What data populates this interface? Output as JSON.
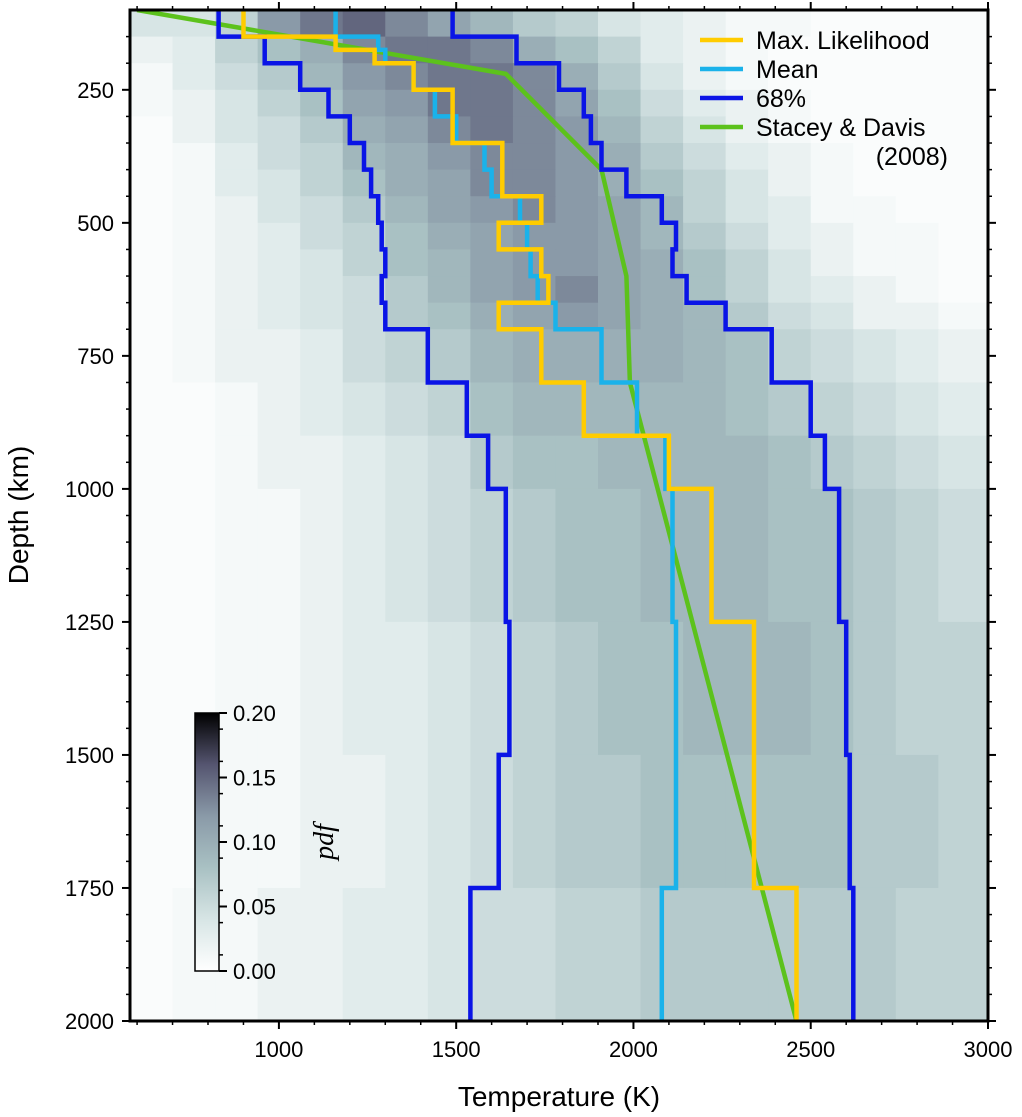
{
  "chart_data": {
    "type": "heatmap",
    "xlabel": "Temperature (K)",
    "ylabel": "Depth (km)",
    "xlim": [
      580,
      3000
    ],
    "ylim": [
      2000,
      100
    ],
    "x_ticks": [
      1000,
      1500,
      2000,
      2500,
      3000
    ],
    "y_ticks": [
      250,
      500,
      750,
      1000,
      1250,
      1500,
      1750,
      2000
    ],
    "x_tick_labels": [
      "1000",
      "1500",
      "2000",
      "2500",
      "3000"
    ],
    "y_tick_labels": [
      "250",
      "500",
      "750",
      "1000",
      "1250",
      "1500",
      "1750",
      "2000"
    ],
    "legend_position": "top-right",
    "legend": [
      {
        "label": "Max. Likelihood",
        "color": "#ffcc00"
      },
      {
        "label": "Mean",
        "color": "#1ab2ea"
      },
      {
        "label": "68%",
        "color": "#0a14e6"
      },
      {
        "label": "Stacey & Davis",
        "label2": "(2008)",
        "color": "#5cc21c"
      }
    ],
    "colorbar": {
      "title": "pdf",
      "range": [
        0,
        0.2
      ],
      "tick_labels": [
        "0.00",
        "0.05",
        "0.10",
        "0.15",
        "0.20"
      ],
      "colors": [
        "#ffffff",
        "#d7e5e5",
        "#a9c1c3",
        "#8a9aa8",
        "#555570",
        "#000000"
      ]
    },
    "depth_bins": [
      100,
      150,
      200,
      250,
      300,
      350,
      400,
      450,
      500,
      550,
      600,
      650,
      700,
      800,
      900,
      1000,
      1250,
      1500,
      1750,
      2000
    ],
    "temperature_bins": [
      580,
      700,
      820,
      940,
      1060,
      1180,
      1300,
      1420,
      1540,
      1660,
      1780,
      1900,
      2020,
      2140,
      2260,
      2380,
      2500,
      2620,
      2740,
      2860,
      3000
    ],
    "pdf_rows": [
      [
        0.04,
        0.04,
        0.06,
        0.12,
        0.14,
        0.15,
        0.13,
        0.11,
        0.09,
        0.07,
        0.06,
        0.04,
        0.03,
        0.02,
        0.01,
        0.01,
        0.005,
        0.005,
        0.005,
        0.005
      ],
      [
        0.02,
        0.03,
        0.06,
        0.08,
        0.1,
        0.13,
        0.14,
        0.14,
        0.13,
        0.1,
        0.08,
        0.06,
        0.03,
        0.02,
        0.01,
        0.005,
        0.005,
        0.005,
        0.005,
        0.005
      ],
      [
        0.01,
        0.03,
        0.05,
        0.07,
        0.09,
        0.12,
        0.13,
        0.14,
        0.14,
        0.13,
        0.1,
        0.07,
        0.04,
        0.02,
        0.01,
        0.005,
        0.005,
        0.005,
        0.005,
        0.005
      ],
      [
        0.01,
        0.02,
        0.04,
        0.06,
        0.08,
        0.11,
        0.12,
        0.14,
        0.14,
        0.13,
        0.11,
        0.08,
        0.05,
        0.03,
        0.02,
        0.01,
        0.005,
        0.005,
        0.005,
        0.005
      ],
      [
        0.005,
        0.02,
        0.04,
        0.05,
        0.07,
        0.1,
        0.11,
        0.13,
        0.14,
        0.13,
        0.12,
        0.09,
        0.06,
        0.04,
        0.02,
        0.01,
        0.005,
        0.005,
        0.005,
        0.005
      ],
      [
        0.005,
        0.01,
        0.03,
        0.05,
        0.06,
        0.09,
        0.1,
        0.12,
        0.13,
        0.13,
        0.12,
        0.1,
        0.07,
        0.05,
        0.03,
        0.02,
        0.01,
        0.005,
        0.005,
        0.005
      ],
      [
        0.005,
        0.01,
        0.03,
        0.04,
        0.06,
        0.08,
        0.1,
        0.11,
        0.13,
        0.13,
        0.12,
        0.1,
        0.08,
        0.06,
        0.04,
        0.02,
        0.01,
        0.005,
        0.005,
        0.005
      ],
      [
        0.005,
        0.01,
        0.02,
        0.04,
        0.05,
        0.07,
        0.09,
        0.11,
        0.12,
        0.13,
        0.12,
        0.11,
        0.09,
        0.06,
        0.04,
        0.03,
        0.01,
        0.01,
        0.005,
        0.005
      ],
      [
        0.005,
        0.01,
        0.02,
        0.03,
        0.05,
        0.06,
        0.08,
        0.1,
        0.11,
        0.12,
        0.12,
        0.11,
        0.09,
        0.07,
        0.05,
        0.03,
        0.02,
        0.01,
        0.01,
        0.005
      ],
      [
        0.005,
        0.01,
        0.02,
        0.03,
        0.04,
        0.06,
        0.08,
        0.09,
        0.11,
        0.12,
        0.12,
        0.11,
        0.1,
        0.08,
        0.06,
        0.04,
        0.02,
        0.01,
        0.01,
        0.005
      ],
      [
        0.005,
        0.01,
        0.02,
        0.03,
        0.04,
        0.05,
        0.07,
        0.09,
        0.11,
        0.12,
        0.13,
        0.11,
        0.1,
        0.08,
        0.06,
        0.04,
        0.03,
        0.02,
        0.01,
        0.005
      ],
      [
        0.005,
        0.01,
        0.02,
        0.03,
        0.04,
        0.05,
        0.07,
        0.08,
        0.1,
        0.11,
        0.12,
        0.11,
        0.1,
        0.09,
        0.07,
        0.05,
        0.04,
        0.02,
        0.02,
        0.01
      ],
      [
        0.005,
        0.01,
        0.02,
        0.02,
        0.03,
        0.05,
        0.06,
        0.07,
        0.09,
        0.1,
        0.1,
        0.1,
        0.1,
        0.09,
        0.08,
        0.06,
        0.05,
        0.04,
        0.03,
        0.02
      ],
      [
        0.005,
        0.005,
        0.01,
        0.02,
        0.03,
        0.04,
        0.05,
        0.06,
        0.08,
        0.09,
        0.09,
        0.09,
        0.09,
        0.09,
        0.08,
        0.07,
        0.06,
        0.05,
        0.04,
        0.03
      ],
      [
        0.005,
        0.005,
        0.01,
        0.02,
        0.02,
        0.03,
        0.04,
        0.05,
        0.07,
        0.08,
        0.08,
        0.09,
        0.09,
        0.09,
        0.09,
        0.08,
        0.07,
        0.06,
        0.05,
        0.04
      ],
      [
        0.005,
        0.005,
        0.01,
        0.01,
        0.02,
        0.03,
        0.04,
        0.05,
        0.06,
        0.07,
        0.08,
        0.08,
        0.09,
        0.09,
        0.09,
        0.08,
        0.08,
        0.07,
        0.06,
        0.05
      ],
      [
        0.005,
        0.005,
        0.01,
        0.01,
        0.02,
        0.03,
        0.03,
        0.04,
        0.05,
        0.06,
        0.07,
        0.08,
        0.08,
        0.09,
        0.09,
        0.09,
        0.08,
        0.07,
        0.06,
        0.06
      ],
      [
        0.005,
        0.005,
        0.01,
        0.01,
        0.02,
        0.02,
        0.03,
        0.04,
        0.05,
        0.06,
        0.07,
        0.07,
        0.08,
        0.08,
        0.08,
        0.08,
        0.08,
        0.07,
        0.07,
        0.06
      ],
      [
        0.005,
        0.01,
        0.01,
        0.02,
        0.02,
        0.03,
        0.03,
        0.04,
        0.05,
        0.05,
        0.06,
        0.06,
        0.07,
        0.07,
        0.07,
        0.07,
        0.07,
        0.07,
        0.06,
        0.06
      ]
    ],
    "series": [
      {
        "name": "Max. Likelihood",
        "type": "step",
        "depth": [
          100,
          150,
          175,
          200,
          250,
          350,
          450,
          500,
          550,
          600,
          650,
          700,
          800,
          900,
          1000,
          1250,
          1750,
          2000
        ],
        "temperature": [
          900,
          1160,
          1270,
          1380,
          1490,
          1630,
          1740,
          1620,
          1740,
          1760,
          1620,
          1740,
          1860,
          2100,
          2220,
          2340,
          2460,
          2460
        ]
      },
      {
        "name": "Mean",
        "type": "step",
        "depth": [
          100,
          150,
          175,
          200,
          250,
          300,
          350,
          400,
          450,
          500,
          550,
          600,
          650,
          700,
          800,
          900,
          1000,
          1250,
          1750,
          2000
        ],
        "temperature": [
          1160,
          1280,
          1300,
          1380,
          1440,
          1500,
          1580,
          1600,
          1680,
          1700,
          1710,
          1730,
          1780,
          1910,
          2010,
          2090,
          2110,
          2120,
          2080,
          2080
        ]
      },
      {
        "name": "68%",
        "type": "step",
        "depth": [
          100,
          150,
          200,
          250,
          300,
          350,
          400,
          450,
          500,
          550,
          600,
          650,
          700,
          800,
          900,
          1000,
          1250,
          1500,
          1750,
          2000
        ],
        "temperature": [
          830,
          960,
          1060,
          1140,
          1200,
          1240,
          1260,
          1280,
          1290,
          1300,
          1290,
          1300,
          1420,
          1530,
          1590,
          1640,
          1650,
          1620,
          1540,
          1540
        ]
      },
      {
        "name": "68%",
        "type": "step",
        "depth": [
          100,
          150,
          200,
          250,
          300,
          350,
          400,
          450,
          500,
          550,
          600,
          650,
          700,
          800,
          900,
          1000,
          1250,
          1500,
          1750,
          2000
        ],
        "temperature": [
          1490,
          1670,
          1790,
          1860,
          1880,
          1910,
          1980,
          2080,
          2120,
          2110,
          2150,
          2260,
          2390,
          2500,
          2540,
          2580,
          2600,
          2610,
          2620,
          2620
        ]
      },
      {
        "name": "Stacey & Davis (2008)",
        "type": "line",
        "depth": [
          100,
          220,
          400,
          600,
          800,
          2000
        ],
        "temperature": [
          600,
          1640,
          1910,
          1980,
          1990,
          2460
        ]
      }
    ]
  }
}
